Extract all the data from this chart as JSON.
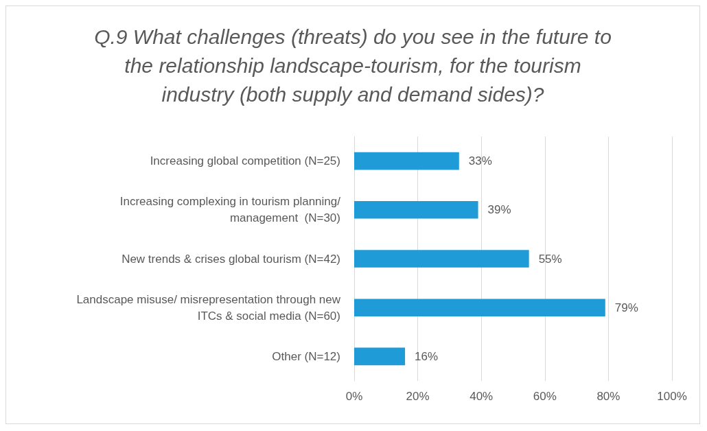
{
  "chart_data": {
    "type": "bar",
    "orientation": "horizontal",
    "title": "Q.9 What challenges (threats) do you see in the future to\nthe relationship landscape-tourism, for the tourism\nindustry (both supply and demand sides)?",
    "categories": [
      "Increasing global competition (N=25)",
      "Increasing complexing in tourism planning/\nmanagement  (N=30)",
      "New trends & crises global tourism (N=42)",
      "Landscape misuse/ misrepresentation through new\nITCs & social media (N=60)",
      "Other (N=12)"
    ],
    "values": [
      33,
      39,
      55,
      79,
      16
    ],
    "value_labels": [
      "33%",
      "39%",
      "55%",
      "79%",
      "16%"
    ],
    "color": "#1f9bd7",
    "xlim": [
      0,
      100
    ],
    "xticks": [
      {
        "value": 0,
        "label": "0%"
      },
      {
        "value": 20,
        "label": "20%"
      },
      {
        "value": 40,
        "label": "40%"
      },
      {
        "value": 60,
        "label": "60%"
      },
      {
        "value": 80,
        "label": "80%"
      },
      {
        "value": 100,
        "label": "100%"
      }
    ],
    "grid": "x"
  }
}
